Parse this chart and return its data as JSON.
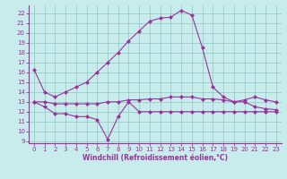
{
  "xlabel": "Windchill (Refroidissement éolien,°C)",
  "background_color": "#c8ecec",
  "line_color": "#993399",
  "grid_color": "#99cccc",
  "xlim": [
    -0.5,
    23.5
  ],
  "ylim": [
    8.8,
    22.8
  ],
  "yticks": [
    9,
    10,
    11,
    12,
    13,
    14,
    15,
    16,
    17,
    18,
    19,
    20,
    21,
    22
  ],
  "xticks": [
    0,
    1,
    2,
    3,
    4,
    5,
    6,
    7,
    8,
    9,
    10,
    11,
    12,
    13,
    14,
    15,
    16,
    17,
    18,
    19,
    20,
    21,
    22,
    23
  ],
  "line1_x": [
    0,
    1,
    2,
    3,
    4,
    5,
    6,
    7,
    8,
    9,
    10,
    11,
    12,
    13,
    14,
    15,
    16,
    17,
    18,
    19,
    20,
    21,
    22,
    23
  ],
  "line1_y": [
    16.3,
    14.0,
    13.5,
    14.0,
    14.5,
    15.0,
    16.0,
    17.0,
    18.0,
    19.2,
    20.2,
    21.2,
    21.5,
    21.6,
    22.3,
    21.8,
    18.5,
    14.5,
    13.5,
    13.0,
    13.2,
    13.5,
    13.2,
    13.0
  ],
  "line2_x": [
    0,
    1,
    2,
    3,
    4,
    5,
    6,
    7,
    8,
    9,
    10,
    11,
    12,
    13,
    14,
    15,
    16,
    17,
    18,
    19,
    20,
    21,
    22,
    23
  ],
  "line2_y": [
    13.0,
    13.0,
    12.8,
    12.8,
    12.8,
    12.8,
    12.8,
    13.0,
    13.0,
    13.2,
    13.2,
    13.3,
    13.3,
    13.5,
    13.5,
    13.5,
    13.3,
    13.3,
    13.2,
    13.0,
    13.0,
    12.5,
    12.3,
    12.2
  ],
  "line3_x": [
    0,
    1,
    2,
    3,
    4,
    5,
    6,
    7,
    8,
    9,
    10,
    11,
    12,
    13,
    14,
    15,
    16,
    17,
    18,
    19,
    20,
    21,
    22,
    23
  ],
  "line3_y": [
    13.0,
    12.5,
    11.8,
    11.8,
    11.5,
    11.5,
    11.2,
    9.2,
    11.5,
    13.0,
    12.0,
    12.0,
    12.0,
    12.0,
    12.0,
    12.0,
    12.0,
    12.0,
    12.0,
    12.0,
    12.0,
    12.0,
    12.0,
    12.0
  ]
}
